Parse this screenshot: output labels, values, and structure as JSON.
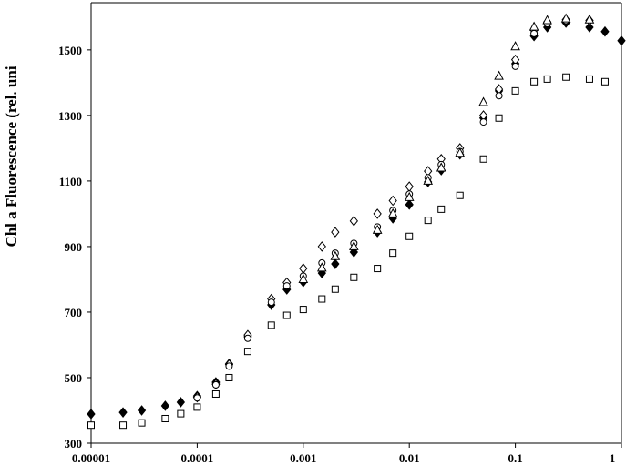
{
  "chart_data": {
    "type": "scatter",
    "ylabel": "Chl a Fluorescence (rel. uni",
    "xscale": "log",
    "xlim": [
      1e-05,
      1
    ],
    "xticks": [
      1e-05,
      0.0001,
      0.001,
      0.01,
      0.1,
      1
    ],
    "ylim": [
      300,
      1644
    ],
    "yticks": [
      300,
      500,
      700,
      900,
      1100,
      1300,
      1500
    ],
    "x": [
      1e-05,
      2e-05,
      3e-05,
      5e-05,
      7e-05,
      0.0001,
      0.00015,
      0.0002,
      0.0003,
      0.0005,
      0.0007,
      0.001,
      0.0015,
      0.002,
      0.003,
      0.005,
      0.007,
      0.01,
      0.015,
      0.02,
      0.03,
      0.05,
      0.07,
      0.1,
      0.15,
      0.2,
      0.3,
      0.5,
      0.7,
      1
    ],
    "series": [
      {
        "marker": "diamond",
        "filled": true,
        "color": "#000000",
        "values": [
          389,
          394,
          400,
          414,
          425,
          444,
          486,
          542,
          625,
          722,
          769,
          792,
          819,
          847,
          883,
          944,
          986,
          1028,
          1097,
          1133,
          1181,
          1292,
          1375,
          1458,
          1542,
          1569,
          1583,
          1569,
          1556,
          1528
        ]
      },
      {
        "marker": "diamond",
        "filled": false,
        "color": "#000000",
        "values": [
          null,
          null,
          null,
          null,
          null,
          440,
          480,
          540,
          630,
          740,
          790,
          833,
          900,
          944,
          978,
          1000,
          1040,
          1083,
          1130,
          1167,
          1200,
          1300,
          1380,
          1470,
          1560,
          1585,
          1592,
          1590,
          null,
          null
        ]
      },
      {
        "marker": "circle",
        "filled": false,
        "color": "#000000",
        "values": [
          null,
          null,
          null,
          null,
          null,
          438,
          478,
          535,
          620,
          730,
          780,
          810,
          850,
          880,
          910,
          960,
          1010,
          1060,
          1110,
          1150,
          1190,
          1280,
          1360,
          1450,
          1550,
          1580,
          1590,
          null,
          null,
          null
        ]
      },
      {
        "marker": "triangle",
        "filled": false,
        "color": "#000000",
        "values": [
          null,
          null,
          null,
          null,
          null,
          null,
          null,
          null,
          null,
          null,
          null,
          800,
          835,
          870,
          900,
          950,
          1000,
          1050,
          1100,
          1140,
          1185,
          1340,
          1420,
          1510,
          1570,
          1590,
          1595,
          1592,
          null,
          null
        ]
      },
      {
        "marker": "square",
        "filled": false,
        "color": "#000000",
        "values": [
          355,
          355,
          362,
          375,
          390,
          410,
          450,
          500,
          580,
          660,
          690,
          708,
          740,
          770,
          806,
          833,
          880,
          931,
          980,
          1014,
          1056,
          1167,
          1292,
          1375,
          1403,
          1411,
          1417,
          1411,
          1403,
          null
        ]
      }
    ]
  }
}
